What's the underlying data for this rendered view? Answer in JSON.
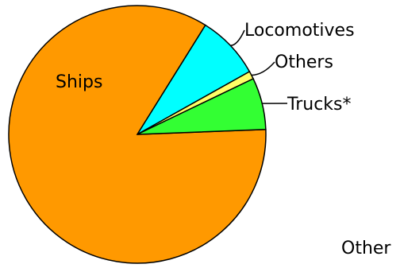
{
  "chart_data": {
    "type": "pie",
    "slices": [
      {
        "label": "Ships",
        "value": 84.5,
        "color": "#FF9900"
      },
      {
        "label": "Locomotives",
        "value": 8.0,
        "color": "#00FFFF"
      },
      {
        "label": "Others",
        "value": 1.0,
        "color": "#FFFF66"
      },
      {
        "label": "Trucks*",
        "value": 6.5,
        "color": "#33FF33"
      }
    ],
    "stroke_color": "#000000"
  },
  "footer": {
    "clipped_text": "Other"
  }
}
